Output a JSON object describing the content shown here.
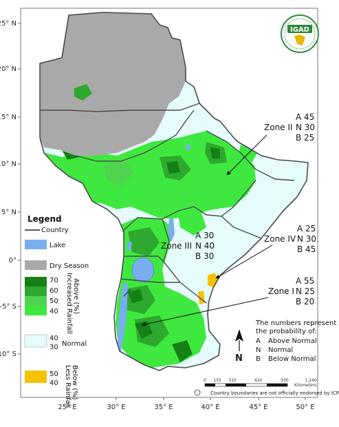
{
  "logo": {
    "text": "IGAD"
  },
  "axes": {
    "lat_ticks": [
      "25° N",
      "20° N",
      "15° N",
      "10° N",
      "5° N",
      "0°",
      "-5° S",
      "-10° S"
    ],
    "lon_ticks": [
      "25° E",
      "30° E",
      "35° E",
      "40° E",
      "45° E",
      "50° E"
    ]
  },
  "zones": [
    {
      "name": "Zone II",
      "A": "A 45",
      "N": "N 30",
      "B": "B 25"
    },
    {
      "name": "Zone III",
      "A": "A 30",
      "N": "N 40",
      "B": "B 30"
    },
    {
      "name": "Zone IV",
      "A": "A 25",
      "N": "N 30",
      "B": "B 45"
    },
    {
      "name": "Zone I",
      "A": "A 55",
      "N": "N 25",
      "B": "B 20"
    }
  ],
  "legend": {
    "title": "Legend",
    "country": "Country",
    "lake": "Lake",
    "dry_season": "Dry Season",
    "above_values": [
      "70",
      "60",
      "50",
      "40"
    ],
    "above_label_1": "Above (%)",
    "above_label_2": "Increased Rainfall",
    "normal_values": [
      "40",
      "30"
    ],
    "normal_label": "Normal",
    "below_values": [
      "50",
      "40"
    ],
    "below_label_1": "Below (%)",
    "below_label_2": "Less Rainfall",
    "colors": {
      "above_70": "#158015",
      "above_60": "#2ea82e",
      "above_50": "#4fd44f",
      "above_40": "#3fe83f",
      "normal": "#e6fbfb",
      "below": "#f5c200",
      "lake": "#78aef0",
      "dry": "#a9a9a9"
    }
  },
  "note": {
    "line1": "The numbers represent",
    "line2": "the probability of:",
    "items": [
      {
        "key": "A",
        "label": "Above Normal"
      },
      {
        "key": "N",
        "label": "Normal"
      },
      {
        "key": "B",
        "label": "Below Normal"
      }
    ]
  },
  "north_label": "N",
  "scale": {
    "labels": [
      "0",
      "155",
      "310",
      "620",
      "930",
      "1,240"
    ],
    "unit": "Kilometers"
  },
  "footer": "Country boundaries are not officially endorsed by ICPAC"
}
